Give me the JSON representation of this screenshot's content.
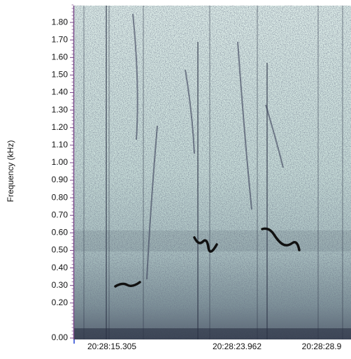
{
  "chart_data": {
    "type": "spectrogram",
    "y_label": "Frequency (kHz)",
    "ylim": [
      0,
      1.9
    ],
    "yticks": [
      {
        "value": 0,
        "label": "0.00"
      },
      {
        "value": 0.2,
        "label": "0.20"
      },
      {
        "value": 0.3,
        "label": "0.30"
      },
      {
        "value": 0.4,
        "label": "0.40"
      },
      {
        "value": 0.5,
        "label": "0.50"
      },
      {
        "value": 0.6,
        "label": "0.60"
      },
      {
        "value": 0.7,
        "label": "0.70"
      },
      {
        "value": 0.8,
        "label": "0.80"
      },
      {
        "value": 0.9,
        "label": "0.90"
      },
      {
        "value": 1.0,
        "label": "1.00"
      },
      {
        "value": 1.1,
        "label": "1.10"
      },
      {
        "value": 1.2,
        "label": "1.20"
      },
      {
        "value": 1.3,
        "label": "1.30"
      },
      {
        "value": 1.4,
        "label": "1.40"
      },
      {
        "value": 1.5,
        "label": "1.50"
      },
      {
        "value": 1.6,
        "label": "1.60"
      },
      {
        "value": 1.7,
        "label": "1.70"
      },
      {
        "value": 1.8,
        "label": "1.80"
      }
    ],
    "x_labels": [
      "20:28:15.305",
      "20:28:23.962",
      "20:28:28.9"
    ]
  }
}
